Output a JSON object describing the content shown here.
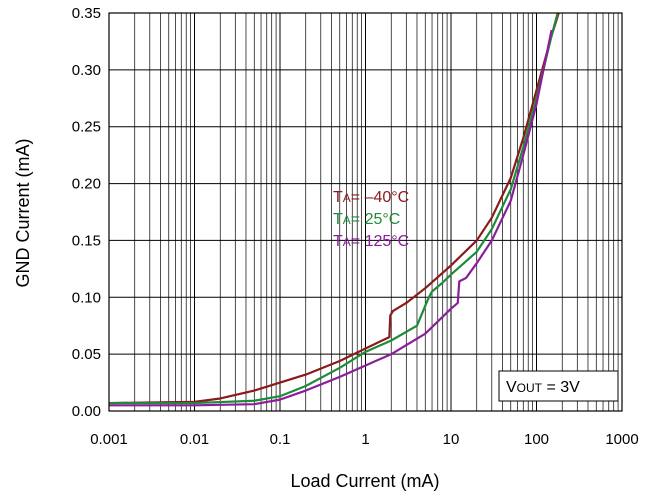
{
  "chart_data": {
    "type": "line",
    "xlabel": "Load Current (mA)",
    "ylabel": "GND Current (mA)",
    "x_scale": "log",
    "xlim": [
      0.001,
      1000
    ],
    "ylim": [
      0,
      0.35
    ],
    "grid": true,
    "x_ticks": [
      "0.001",
      "0.01",
      "0.1",
      "1",
      "10",
      "100",
      "1000"
    ],
    "y_ticks": [
      "0.00",
      "0.05",
      "0.10",
      "0.15",
      "0.20",
      "0.25",
      "0.30",
      "0.35"
    ],
    "legend": {
      "placement": "center",
      "entries": [
        {
          "prefix": "T",
          "sub": "A",
          "text": "= –40°C",
          "color": "#8B1A1A"
        },
        {
          "prefix": "T",
          "sub": "A",
          "text": "= 25°C",
          "color": "#1E8B3A"
        },
        {
          "prefix": "T",
          "sub": "A",
          "text": "= 125°C",
          "color": "#8B1E9B"
        }
      ]
    },
    "annotation": {
      "prefix": "V",
      "sub": "OUT",
      "text": " = 3V"
    },
    "series": [
      {
        "color": "#8B1A1A",
        "x": [
          0.001,
          0.01,
          0.02,
          0.05,
          0.1,
          0.2,
          0.5,
          1,
          1.9,
          1.95,
          2.1,
          3,
          5,
          10,
          20,
          30,
          50,
          70,
          100,
          150,
          200
        ],
        "y": [
          0.007,
          0.008,
          0.011,
          0.018,
          0.025,
          0.032,
          0.044,
          0.055,
          0.065,
          0.084,
          0.088,
          0.095,
          0.108,
          0.128,
          0.15,
          0.17,
          0.205,
          0.24,
          0.282,
          0.33,
          0.36
        ]
      },
      {
        "color": "#1E8B3A",
        "x": [
          0.001,
          0.01,
          0.05,
          0.1,
          0.2,
          0.5,
          1,
          2,
          4,
          5.5,
          6,
          8,
          10,
          20,
          30,
          50,
          70,
          100,
          150,
          200
        ],
        "y": [
          0.007,
          0.007,
          0.009,
          0.013,
          0.022,
          0.038,
          0.052,
          0.062,
          0.075,
          0.1,
          0.105,
          0.113,
          0.12,
          0.14,
          0.16,
          0.195,
          0.232,
          0.275,
          0.33,
          0.365
        ]
      },
      {
        "color": "#8B1E9B",
        "x": [
          0.001,
          0.01,
          0.05,
          0.1,
          0.2,
          0.5,
          1,
          2,
          5,
          10,
          12,
          12.5,
          15,
          20,
          30,
          50,
          70,
          100,
          150
        ],
        "y": [
          0.005,
          0.005,
          0.006,
          0.01,
          0.018,
          0.03,
          0.04,
          0.05,
          0.068,
          0.09,
          0.095,
          0.114,
          0.117,
          0.13,
          0.15,
          0.185,
          0.225,
          0.27,
          0.335
        ]
      }
    ]
  }
}
